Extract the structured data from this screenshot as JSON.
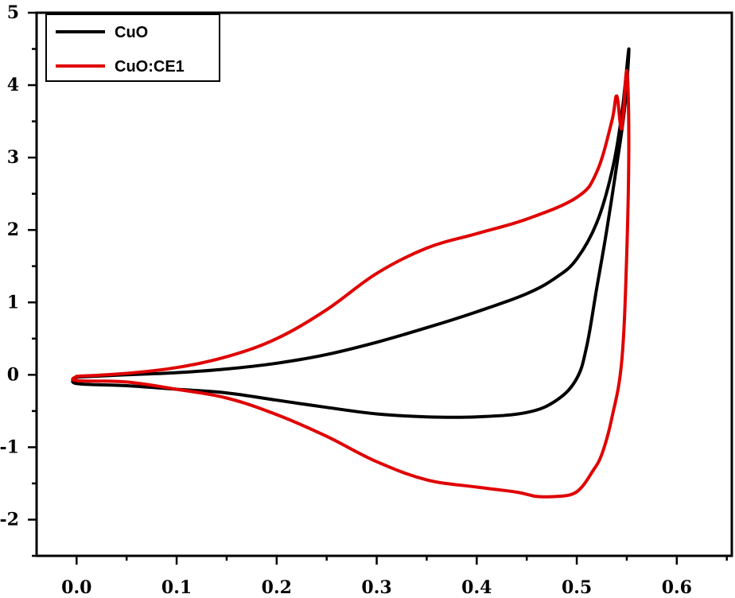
{
  "chart_data": {
    "type": "line",
    "title": "",
    "xlabel": "",
    "ylabel": "",
    "xlim": [
      -0.04,
      0.655
    ],
    "ylim": [
      -2.5,
      5
    ],
    "x_ticks": [
      "0.0",
      "0.1",
      "0.2",
      "0.3",
      "0.4",
      "0.5",
      "0.6"
    ],
    "x_tick_values": [
      0.0,
      0.1,
      0.2,
      0.3,
      0.4,
      0.5,
      0.6
    ],
    "y_ticks": [
      "-2",
      "-1",
      "0",
      "1",
      "2",
      "3",
      "4",
      "5"
    ],
    "y_tick_values": [
      -2,
      -1,
      0,
      1,
      2,
      3,
      4,
      5
    ],
    "grid": false,
    "legend_position": "top-left",
    "series": [
      {
        "name": "CuO",
        "color": "#000000",
        "x": [
          0.0,
          0.05,
          0.1,
          0.15,
          0.2,
          0.25,
          0.3,
          0.35,
          0.4,
          0.45,
          0.48,
          0.5,
          0.52,
          0.535,
          0.545,
          0.552,
          0.548,
          0.54,
          0.53,
          0.52,
          0.51,
          0.5,
          0.48,
          0.45,
          0.4,
          0.35,
          0.3,
          0.25,
          0.2,
          0.15,
          0.1,
          0.05,
          0.0,
          0.0
        ],
        "y": [
          -0.03,
          0.0,
          0.03,
          0.08,
          0.16,
          0.28,
          0.45,
          0.65,
          0.87,
          1.12,
          1.35,
          1.6,
          2.1,
          2.8,
          3.6,
          4.5,
          3.7,
          2.9,
          2.0,
          1.2,
          0.4,
          -0.05,
          -0.35,
          -0.52,
          -0.58,
          -0.58,
          -0.54,
          -0.45,
          -0.35,
          -0.25,
          -0.2,
          -0.15,
          -0.12,
          -0.03
        ]
      },
      {
        "name": "CuO:CE1",
        "color": "#e00000",
        "x": [
          0.0,
          0.05,
          0.1,
          0.15,
          0.2,
          0.25,
          0.3,
          0.35,
          0.4,
          0.45,
          0.5,
          0.52,
          0.535,
          0.54,
          0.545,
          0.55,
          0.552,
          0.55,
          0.545,
          0.535,
          0.525,
          0.515,
          0.505,
          0.495,
          0.48,
          0.46,
          0.44,
          0.4,
          0.35,
          0.3,
          0.25,
          0.2,
          0.15,
          0.1,
          0.05,
          0.0,
          0.0
        ],
        "y": [
          -0.02,
          0.02,
          0.1,
          0.25,
          0.5,
          0.9,
          1.4,
          1.75,
          1.95,
          2.15,
          2.45,
          2.8,
          3.5,
          3.85,
          3.4,
          4.2,
          3.2,
          1.7,
          0.2,
          -0.6,
          -1.1,
          -1.35,
          -1.55,
          -1.65,
          -1.68,
          -1.68,
          -1.62,
          -1.55,
          -1.45,
          -1.2,
          -0.85,
          -0.55,
          -0.32,
          -0.2,
          -0.1,
          -0.08,
          -0.02
        ]
      }
    ]
  }
}
